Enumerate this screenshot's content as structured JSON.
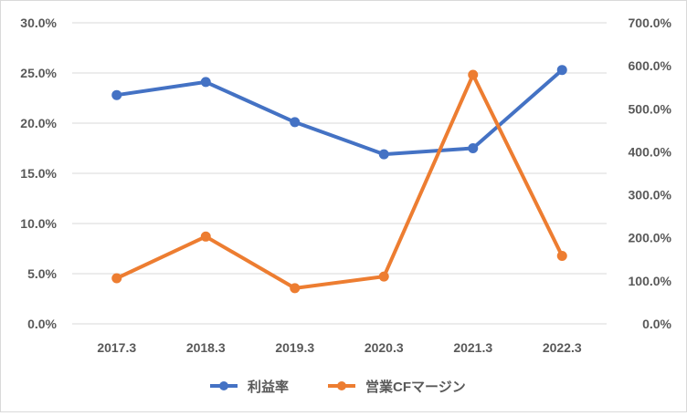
{
  "chart_data": {
    "type": "line",
    "title": "",
    "xlabel": "",
    "ylabel": "",
    "categories": [
      "2017.3",
      "2018.3",
      "2019.3",
      "2020.3",
      "2021.3",
      "2022.3"
    ],
    "series": [
      {
        "name": "利益率",
        "axis": "left",
        "color": "#4472C4",
        "values": [
          0.228,
          0.241,
          0.201,
          0.169,
          0.175,
          0.253
        ]
      },
      {
        "name": "営業CFマージン",
        "axis": "right",
        "color": "#ED7D31",
        "values": [
          1.06,
          2.03,
          0.83,
          1.1,
          5.79,
          1.58
        ]
      }
    ],
    "y_left": {
      "ylim": [
        0,
        0.3
      ],
      "ticks": [
        0,
        0.05,
        0.1,
        0.15,
        0.2,
        0.25,
        0.3
      ],
      "tick_labels": [
        "0.0%",
        "5.0%",
        "10.0%",
        "15.0%",
        "20.0%",
        "25.0%",
        "30.0%"
      ]
    },
    "y_right": {
      "ylim": [
        0,
        7.0
      ],
      "ticks": [
        0,
        1,
        2,
        3,
        4,
        5,
        6,
        7
      ],
      "tick_labels": [
        "0.0%",
        "100.0%",
        "200.0%",
        "300.0%",
        "400.0%",
        "500.0%",
        "600.0%",
        "700.0%"
      ]
    },
    "grid": true,
    "legend": "bottom"
  }
}
